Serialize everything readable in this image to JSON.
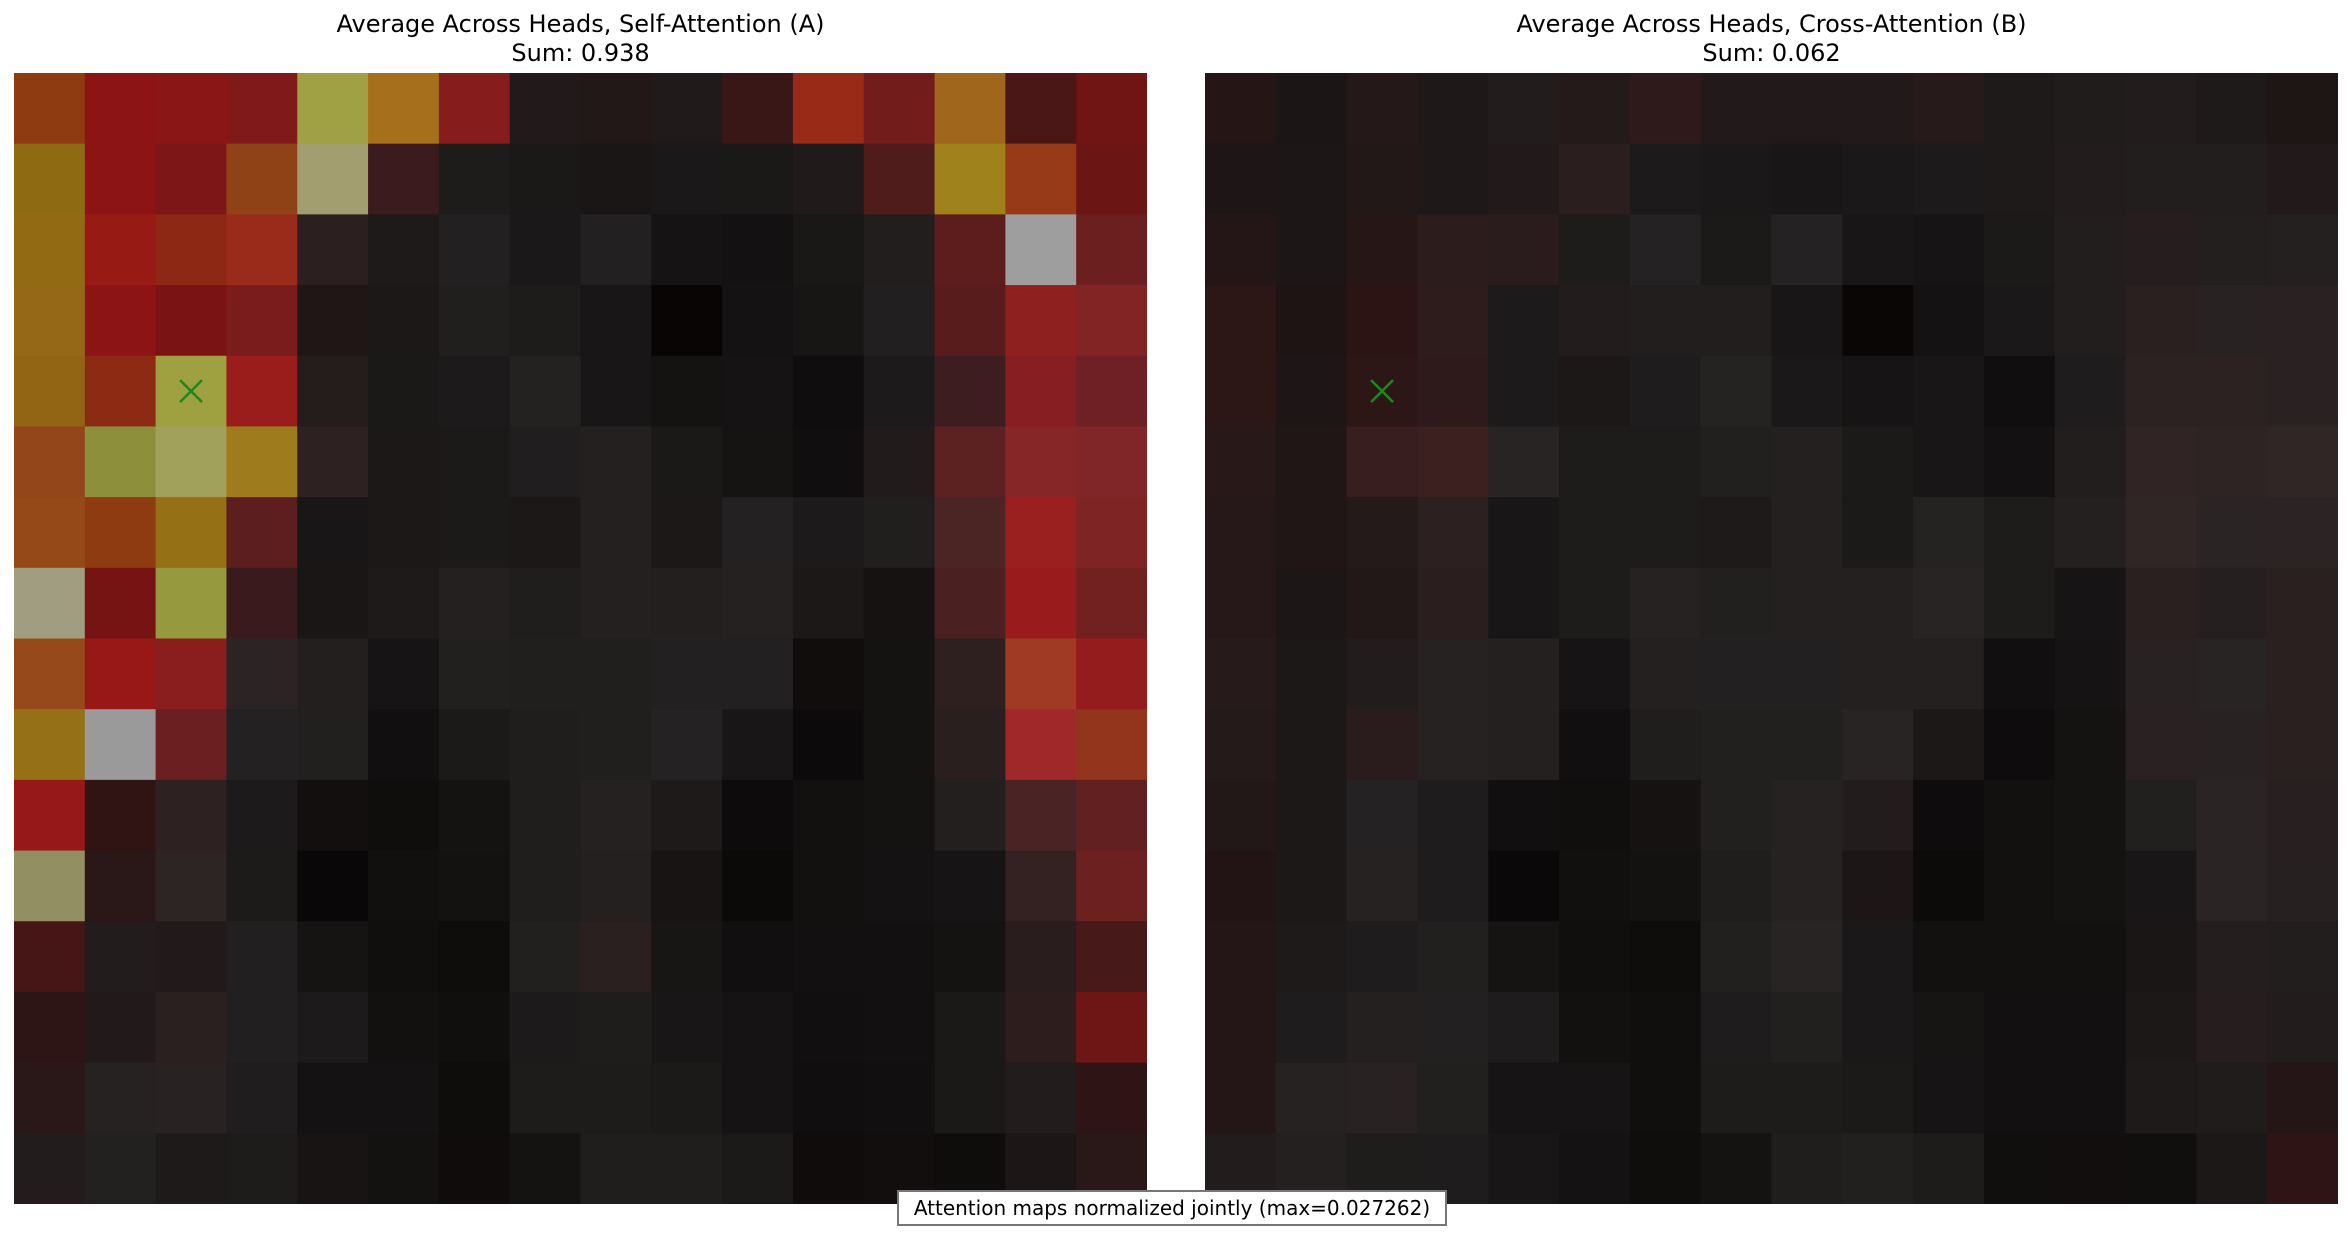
{
  "footnote": "Attention maps normalized jointly (max=0.027262)",
  "chart_data": [
    {
      "type": "heatmap",
      "title": "Average Across Heads, Self-Attention (A)",
      "subtitle": "Sum: 0.938",
      "rows": 16,
      "cols": 16,
      "marker": {
        "row": 4,
        "col": 2,
        "symbol": "x",
        "color": "#1a8a1a"
      },
      "cell_colors": [
        [
          "#8f3b12",
          "#8c1414",
          "#8a1616",
          "#801919",
          "#a0a044",
          "#a66f1c",
          "#871c1c",
          "#221a1a",
          "#221818",
          "#201a1a",
          "#3a1717",
          "#9a2a18",
          "#731c1c",
          "#a0661c",
          "#4b1616",
          "#701414"
        ],
        [
          "#8e6a12",
          "#8c1414",
          "#7d1616",
          "#8f4215",
          "#a29e70",
          "#3b1b1d",
          "#1e1b1b",
          "#1b1818",
          "#1a1616",
          "#1a1818",
          "#1b1818",
          "#211a1a",
          "#501b1b",
          "#a0821c",
          "#963a17",
          "#6b1515"
        ],
        [
          "#936a14",
          "#971a14",
          "#8d2815",
          "#9a2a1a",
          "#2c1f1f",
          "#1e1a1a",
          "#222020",
          "#1a1818",
          "#222020",
          "#151313",
          "#131111",
          "#1a1717",
          "#221e1e",
          "#5e1d1d",
          "#9e9e9e",
          "#6c1f1f"
        ],
        [
          "#956818",
          "#8c1414",
          "#7a1414",
          "#7a1c1c",
          "#201616",
          "#1c1818",
          "#211e1e",
          "#1e1b1b",
          "#181616",
          "#0a0505",
          "#141212",
          "#181515",
          "#211f1f",
          "#591c1c",
          "#8e2020",
          "#822424"
        ],
        [
          "#926514",
          "#8d2a14",
          "#9fa040",
          "#9a1d1c",
          "#251c1c",
          "#1b1818",
          "#1c1a1a",
          "#242121",
          "#181616",
          "#151212",
          "#151313",
          "#0f0d0d",
          "#1c1a1a",
          "#3e1d20",
          "#871f22",
          "#6e2024"
        ],
        [
          "#92461a",
          "#8e8f3a",
          "#a2a15c",
          "#9e7c1e",
          "#2d2121",
          "#1c1818",
          "#1c1919",
          "#201e1e",
          "#252020",
          "#1b1818",
          "#161313",
          "#100e0e",
          "#221b1b",
          "#5c2222",
          "#872626",
          "#802628"
        ],
        [
          "#954918",
          "#8f3b12",
          "#967014",
          "#5c1e1e",
          "#181616",
          "#1c1818",
          "#1c1919",
          "#1c1818",
          "#252020",
          "#1c1818",
          "#232121",
          "#1c1a1a",
          "#211e1e",
          "#4b2424",
          "#9a2020",
          "#7e2424"
        ],
        [
          "#a09d80",
          "#761414",
          "#97993e",
          "#3a1a1d",
          "#1a1616",
          "#1e1a1a",
          "#252020",
          "#201d1d",
          "#242020",
          "#231f1f",
          "#252121",
          "#1c1818",
          "#161212",
          "#4a2020",
          "#9a1b1b",
          "#722020"
        ],
        [
          "#964a1c",
          "#981818",
          "#8a1e1e",
          "#2c2424",
          "#231f1f",
          "#161414",
          "#221f1f",
          "#211e1e",
          "#211e1e",
          "#222020",
          "#222020",
          "#110d0d",
          "#151212",
          "#2f2020",
          "#a03a24",
          "#951c1c"
        ],
        [
          "#957016",
          "#9a9a9a",
          "#6c1f20",
          "#232121",
          "#221f1f",
          "#110f0f",
          "#1c1919",
          "#201d1d",
          "#211e1e",
          "#242222",
          "#181616",
          "#0c0a0a",
          "#151212",
          "#2a1f1f",
          "#a02828",
          "#93341c"
        ],
        [
          "#961818",
          "#301414",
          "#2d2121",
          "#1c1a1a",
          "#130f0f",
          "#100d0d",
          "#151212",
          "#201d1d",
          "#252121",
          "#1e1a1a",
          "#0d0b0b",
          "#131010",
          "#151212",
          "#231f1f",
          "#4a2424",
          "#632020"
        ],
        [
          "#928f62",
          "#2a1717",
          "#2d2424",
          "#1d1a1a",
          "#090707",
          "#120f0f",
          "#141111",
          "#201d1d",
          "#252020",
          "#181414",
          "#0c0909",
          "#131010",
          "#141212",
          "#161414",
          "#342222",
          "#6c2020"
        ],
        [
          "#461616",
          "#221c1c",
          "#221a1a",
          "#211f1f",
          "#161313",
          "#110e0e",
          "#0f0c0c",
          "#221f1f",
          "#2a2020",
          "#181515",
          "#110f0f",
          "#121010",
          "#121010",
          "#151212",
          "#2a1d1d",
          "#471919"
        ],
        [
          "#2d1515",
          "#221a1a",
          "#2a2020",
          "#211f1f",
          "#1c1a1a",
          "#131010",
          "#110e0e",
          "#1c1a1a",
          "#1f1c1c",
          "#181616",
          "#151313",
          "#110f0f",
          "#121010",
          "#1b1818",
          "#2e1d1d",
          "#6e1616"
        ],
        [
          "#2a1818",
          "#262222",
          "#282222",
          "#1f1d1d",
          "#141212",
          "#141212",
          "#0f0c0c",
          "#1e1b1b",
          "#1e1b1b",
          "#1c1919",
          "#151313",
          "#100e0e",
          "#110f0f",
          "#1b1818",
          "#221c1c",
          "#2e1414"
        ],
        [
          "#221c1c",
          "#232020",
          "#1f1a1a",
          "#1e1b1b",
          "#181414",
          "#141111",
          "#100c0c",
          "#151212",
          "#201d1d",
          "#201d1d",
          "#1c1919",
          "#110c0c",
          "#130e0e",
          "#0f0c0c",
          "#1c1616",
          "#2a1717"
        ]
      ]
    },
    {
      "type": "heatmap",
      "title": "Average Across Heads, Cross-Attention (B)",
      "subtitle": "Sum: 0.062",
      "rows": 16,
      "cols": 16,
      "marker": {
        "row": 4,
        "col": 2,
        "symbol": "x",
        "color": "#1a8a1a"
      },
      "cell_colors": [
        [
          "#251515",
          "#1b1515",
          "#251818",
          "#1e1818",
          "#221c1c",
          "#241a1a",
          "#2e1a1a",
          "#221a1a",
          "#221a1a",
          "#221a1a",
          "#261a1a",
          "#1e1a1a",
          "#211c1c",
          "#221c1c",
          "#1e1a1a",
          "#1e1515"
        ],
        [
          "#1e1616",
          "#1c1616",
          "#221818",
          "#1e1818",
          "#221a1a",
          "#2a1e1e",
          "#1c1a1a",
          "#1a1818",
          "#181616",
          "#1a1818",
          "#1c1a1a",
          "#1e1a1a",
          "#221c1c",
          "#221e1e",
          "#221e1e",
          "#221a1a"
        ],
        [
          "#241616",
          "#1c1616",
          "#261616",
          "#2c1c1c",
          "#2a1c1c",
          "#1e1b1b",
          "#242222",
          "#1c1919",
          "#242222",
          "#181616",
          "#161414",
          "#1c1919",
          "#221e1e",
          "#261e1e",
          "#231f1f",
          "#242020"
        ],
        [
          "#2c1616",
          "#1e1414",
          "#2c1414",
          "#2e1c1c",
          "#1c1a1a",
          "#221c1c",
          "#221e1e",
          "#221e1e",
          "#181616",
          "#0a0606",
          "#141212",
          "#1a1818",
          "#221e1e",
          "#2a2020",
          "#282222",
          "#2a2222"
        ],
        [
          "#2c1616",
          "#1e1616",
          "#2c1616",
          "#2e1a1a",
          "#1c1a1a",
          "#1c1818",
          "#1e1c1c",
          "#252222",
          "#1a1818",
          "#161414",
          "#181616",
          "#100e0e",
          "#1e1c1c",
          "#2c2222",
          "#2c2222",
          "#2a2222"
        ],
        [
          "#281818",
          "#201616",
          "#381e1e",
          "#3c2020",
          "#282424",
          "#1e1b1b",
          "#1e1b1b",
          "#221f1f",
          "#242020",
          "#1c1919",
          "#181616",
          "#131111",
          "#221e1e",
          "#302424",
          "#2e2424",
          "#302626"
        ],
        [
          "#261818",
          "#201616",
          "#241a1a",
          "#2c2020",
          "#181616",
          "#1e1b1b",
          "#1e1b1b",
          "#1e1a1a",
          "#242020",
          "#1c1919",
          "#252222",
          "#1e1b1b",
          "#242020",
          "#302626",
          "#2a2424",
          "#2c2424"
        ],
        [
          "#261818",
          "#1c1616",
          "#221818",
          "#2a1e1e",
          "#181616",
          "#1e1b1b",
          "#262222",
          "#221f1f",
          "#242020",
          "#242020",
          "#282424",
          "#1e1b1b",
          "#161414",
          "#2a2020",
          "#261f1f",
          "#2a2020"
        ],
        [
          "#261a1a",
          "#1c1818",
          "#221c1c",
          "#262222",
          "#242020",
          "#161414",
          "#242020",
          "#222020",
          "#222020",
          "#242020",
          "#242020",
          "#110f0f",
          "#151313",
          "#282222",
          "#282424",
          "#2a2020"
        ],
        [
          "#241a1a",
          "#1c1818",
          "#2a1c1c",
          "#262222",
          "#242020",
          "#110f0f",
          "#201d1d",
          "#221f1f",
          "#221f1f",
          "#282424",
          "#1c1818",
          "#0e0c0c",
          "#151212",
          "#2a2222",
          "#282222",
          "#2a2020"
        ],
        [
          "#221818",
          "#1c1818",
          "#242222",
          "#1e1c1c",
          "#110f0f",
          "#110e0e",
          "#161212",
          "#221f1f",
          "#262222",
          "#221c1c",
          "#0e0c0c",
          "#131010",
          "#151212",
          "#221f1f",
          "#2a2424",
          "#282020"
        ],
        [
          "#221414",
          "#1c1818",
          "#262222",
          "#1e1c1c",
          "#0a0808",
          "#120f0f",
          "#141111",
          "#201d1d",
          "#262222",
          "#1c1616",
          "#0d0a0a",
          "#131010",
          "#151212",
          "#181616",
          "#2a2424",
          "#262020"
        ],
        [
          "#241616",
          "#1e1a1a",
          "#1e1c1c",
          "#221f1f",
          "#161313",
          "#110e0e",
          "#0f0c0c",
          "#221f1f",
          "#282424",
          "#1a1818",
          "#131010",
          "#131010",
          "#131010",
          "#1a1616",
          "#241e1e",
          "#221e1e"
        ],
        [
          "#241616",
          "#1e1c1c",
          "#242020",
          "#222020",
          "#1e1c1c",
          "#131010",
          "#110e0e",
          "#1e1c1c",
          "#221f1f",
          "#1a1818",
          "#171414",
          "#121010",
          "#121010",
          "#1c1818",
          "#261e1e",
          "#221c1c"
        ],
        [
          "#241616",
          "#262222",
          "#282222",
          "#221f1f",
          "#161414",
          "#161414",
          "#110e0e",
          "#1e1b1b",
          "#1e1b1b",
          "#1c1919",
          "#161414",
          "#121010",
          "#121010",
          "#1e1a1a",
          "#201c1c",
          "#241616"
        ],
        [
          "#221c1c",
          "#242020",
          "#1f1c1c",
          "#1e1c1c",
          "#181616",
          "#141212",
          "#100d0d",
          "#151212",
          "#201d1d",
          "#221f1f",
          "#1e1b1b",
          "#110e0e",
          "#130e0e",
          "#110e0e",
          "#1c1818",
          "#2e1414"
        ]
      ]
    }
  ]
}
